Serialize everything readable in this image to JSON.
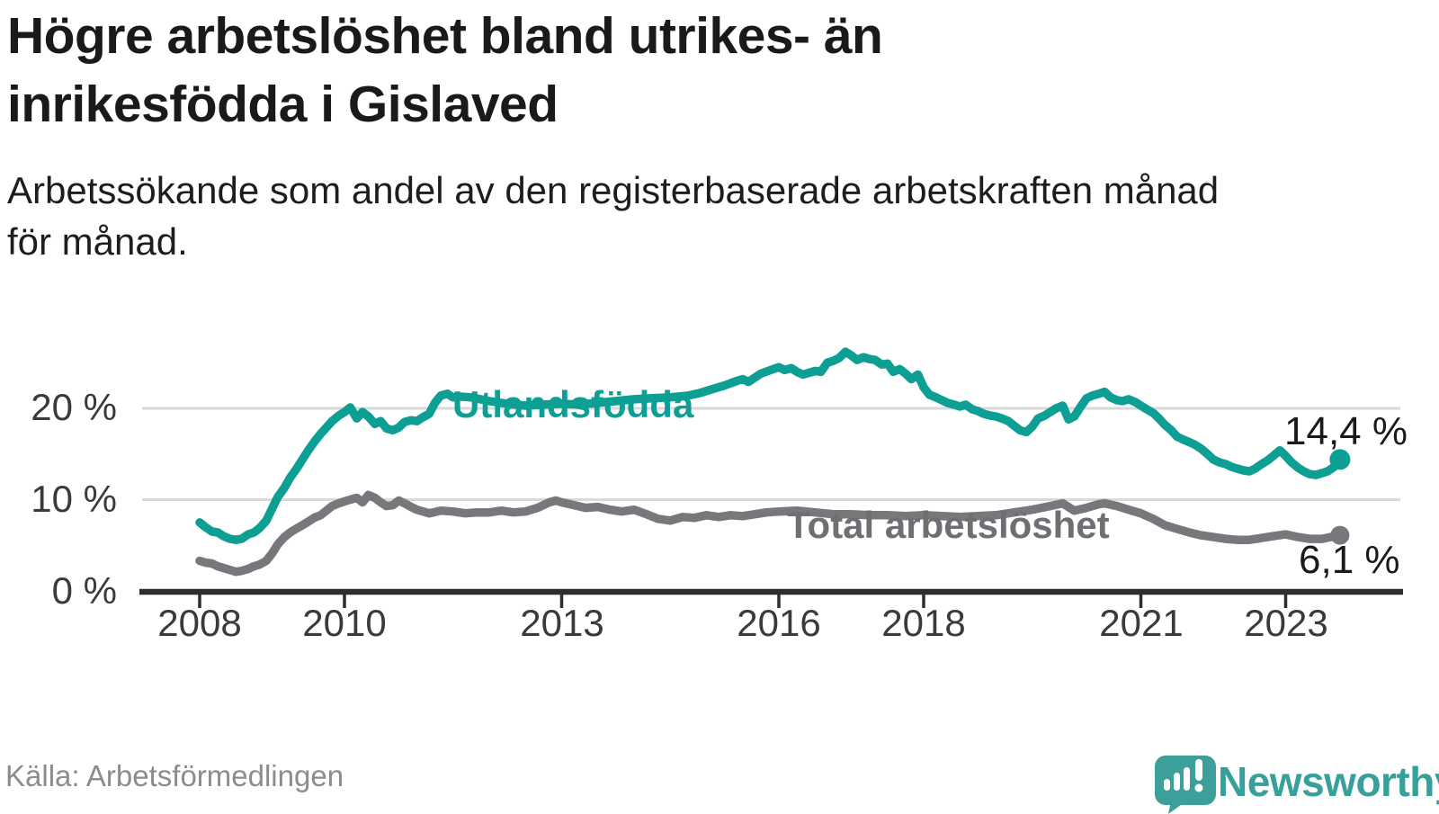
{
  "header": {
    "title_line1": "Högre arbetslöshet bland utrikes- än",
    "title_line2": "inrikesfödda i Gislaved",
    "subtitle_line1": "Arbetssökande som andel av den registerbaserade arbetskraften månad",
    "subtitle_line2": "för månad."
  },
  "footer": {
    "source": "Källa: Arbetsförmedlingen",
    "brand": "Newsworthy"
  },
  "colors": {
    "teal": "#0d9f94",
    "gray": "#77777c",
    "grid": "#d9d9d9",
    "axis": "#2d2d2d"
  },
  "chart_data": {
    "type": "line",
    "unit": "%",
    "title": "Högre arbetslöshet bland utrikes- än inrikesfödda i Gislaved",
    "subtitle": "Arbetssökande som andel av den registerbaserade arbetskraften månad för månad.",
    "grid": "horizontal-only",
    "y_axis": {
      "range": [
        0,
        28
      ],
      "gridlines": [
        10,
        20
      ],
      "ticks": [
        {
          "value": 20,
          "label": "20 %"
        },
        {
          "value": 10,
          "label": "10 %"
        },
        {
          "value": 0,
          "label": "0 %"
        }
      ]
    },
    "x_axis": {
      "range": [
        2008.0,
        2024.6
      ],
      "ticks": [
        {
          "value": 2008,
          "label": "2008"
        },
        {
          "value": 2010,
          "label": "2010"
        },
        {
          "value": 2013,
          "label": "2013"
        },
        {
          "value": 2016,
          "label": "2016"
        },
        {
          "value": 2018,
          "label": "2018"
        },
        {
          "value": 2021,
          "label": "2021"
        },
        {
          "value": 2023,
          "label": "2023"
        }
      ]
    },
    "series": [
      {
        "name": "Utlandsfödda",
        "color": "#0d9f94",
        "end_value": 14.4,
        "end_label": "14,4 %",
        "points": [
          [
            2008.0,
            7.5
          ],
          [
            2008.08,
            7.0
          ],
          [
            2008.17,
            6.5
          ],
          [
            2008.25,
            6.4
          ],
          [
            2008.33,
            6.0
          ],
          [
            2008.42,
            5.7
          ],
          [
            2008.5,
            5.6
          ],
          [
            2008.58,
            5.7
          ],
          [
            2008.67,
            6.2
          ],
          [
            2008.75,
            6.4
          ],
          [
            2008.83,
            6.9
          ],
          [
            2008.92,
            7.7
          ],
          [
            2009.0,
            9.0
          ],
          [
            2009.08,
            10.3
          ],
          [
            2009.17,
            11.3
          ],
          [
            2009.25,
            12.4
          ],
          [
            2009.33,
            13.3
          ],
          [
            2009.42,
            14.4
          ],
          [
            2009.5,
            15.4
          ],
          [
            2009.58,
            16.3
          ],
          [
            2009.67,
            17.2
          ],
          [
            2009.75,
            17.9
          ],
          [
            2009.83,
            18.6
          ],
          [
            2009.92,
            19.2
          ],
          [
            2010.0,
            19.6
          ],
          [
            2010.08,
            20.1
          ],
          [
            2010.17,
            18.9
          ],
          [
            2010.25,
            19.6
          ],
          [
            2010.33,
            19.1
          ],
          [
            2010.42,
            18.3
          ],
          [
            2010.5,
            18.6
          ],
          [
            2010.58,
            17.8
          ],
          [
            2010.67,
            17.6
          ],
          [
            2010.75,
            17.9
          ],
          [
            2010.83,
            18.5
          ],
          [
            2010.92,
            18.7
          ],
          [
            2011.0,
            18.6
          ],
          [
            2011.08,
            19.0
          ],
          [
            2011.17,
            19.4
          ],
          [
            2011.25,
            20.6
          ],
          [
            2011.33,
            21.4
          ],
          [
            2011.42,
            21.6
          ],
          [
            2011.5,
            21.2
          ],
          [
            2011.58,
            21.3
          ],
          [
            2011.75,
            21.2
          ],
          [
            2012.0,
            20.8
          ],
          [
            2012.25,
            20.5
          ],
          [
            2012.5,
            20.3
          ],
          [
            2012.75,
            20.4
          ],
          [
            2013.0,
            20.5
          ],
          [
            2013.25,
            20.4
          ],
          [
            2013.5,
            20.6
          ],
          [
            2013.75,
            20.8
          ],
          [
            2014.0,
            21.0
          ],
          [
            2014.25,
            21.1
          ],
          [
            2014.5,
            21.2
          ],
          [
            2014.75,
            21.4
          ],
          [
            2014.92,
            21.7
          ],
          [
            2015.08,
            22.1
          ],
          [
            2015.25,
            22.5
          ],
          [
            2015.42,
            23.0
          ],
          [
            2015.5,
            23.2
          ],
          [
            2015.58,
            22.9
          ],
          [
            2015.75,
            23.8
          ],
          [
            2015.92,
            24.3
          ],
          [
            2016.0,
            24.5
          ],
          [
            2016.08,
            24.2
          ],
          [
            2016.17,
            24.4
          ],
          [
            2016.25,
            24.0
          ],
          [
            2016.33,
            23.7
          ],
          [
            2016.42,
            23.9
          ],
          [
            2016.5,
            24.1
          ],
          [
            2016.58,
            24.0
          ],
          [
            2016.67,
            25.0
          ],
          [
            2016.75,
            25.2
          ],
          [
            2016.83,
            25.5
          ],
          [
            2016.92,
            26.2
          ],
          [
            2017.0,
            25.8
          ],
          [
            2017.08,
            25.3
          ],
          [
            2017.17,
            25.6
          ],
          [
            2017.25,
            25.4
          ],
          [
            2017.33,
            25.3
          ],
          [
            2017.42,
            24.8
          ],
          [
            2017.5,
            24.9
          ],
          [
            2017.58,
            24.0
          ],
          [
            2017.67,
            24.3
          ],
          [
            2017.75,
            23.8
          ],
          [
            2017.83,
            23.2
          ],
          [
            2017.92,
            23.7
          ],
          [
            2018.0,
            22.3
          ],
          [
            2018.08,
            21.5
          ],
          [
            2018.17,
            21.2
          ],
          [
            2018.25,
            20.9
          ],
          [
            2018.33,
            20.6
          ],
          [
            2018.42,
            20.4
          ],
          [
            2018.5,
            20.2
          ],
          [
            2018.58,
            20.4
          ],
          [
            2018.67,
            19.9
          ],
          [
            2018.75,
            19.7
          ],
          [
            2018.83,
            19.4
          ],
          [
            2018.92,
            19.2
          ],
          [
            2019.0,
            19.1
          ],
          [
            2019.08,
            18.9
          ],
          [
            2019.17,
            18.6
          ],
          [
            2019.25,
            18.1
          ],
          [
            2019.33,
            17.6
          ],
          [
            2019.42,
            17.4
          ],
          [
            2019.5,
            18.0
          ],
          [
            2019.58,
            18.9
          ],
          [
            2019.67,
            19.2
          ],
          [
            2019.75,
            19.6
          ],
          [
            2019.83,
            20.0
          ],
          [
            2019.92,
            20.3
          ],
          [
            2020.0,
            18.8
          ],
          [
            2020.08,
            19.1
          ],
          [
            2020.17,
            20.2
          ],
          [
            2020.25,
            21.1
          ],
          [
            2020.33,
            21.4
          ],
          [
            2020.42,
            21.6
          ],
          [
            2020.5,
            21.8
          ],
          [
            2020.58,
            21.2
          ],
          [
            2020.67,
            20.9
          ],
          [
            2020.75,
            20.8
          ],
          [
            2020.83,
            21.0
          ],
          [
            2020.92,
            20.7
          ],
          [
            2021.0,
            20.3
          ],
          [
            2021.08,
            19.9
          ],
          [
            2021.17,
            19.5
          ],
          [
            2021.25,
            18.9
          ],
          [
            2021.33,
            18.2
          ],
          [
            2021.42,
            17.6
          ],
          [
            2021.5,
            16.9
          ],
          [
            2021.58,
            16.6
          ],
          [
            2021.67,
            16.3
          ],
          [
            2021.75,
            16.0
          ],
          [
            2021.83,
            15.6
          ],
          [
            2021.92,
            15.0
          ],
          [
            2022.0,
            14.4
          ],
          [
            2022.08,
            14.1
          ],
          [
            2022.17,
            13.9
          ],
          [
            2022.25,
            13.6
          ],
          [
            2022.33,
            13.4
          ],
          [
            2022.42,
            13.2
          ],
          [
            2022.5,
            13.1
          ],
          [
            2022.58,
            13.4
          ],
          [
            2022.67,
            13.9
          ],
          [
            2022.75,
            14.3
          ],
          [
            2022.83,
            14.8
          ],
          [
            2022.92,
            15.4
          ],
          [
            2023.0,
            14.8
          ],
          [
            2023.08,
            14.1
          ],
          [
            2023.17,
            13.5
          ],
          [
            2023.25,
            13.1
          ],
          [
            2023.33,
            12.8
          ],
          [
            2023.42,
            12.7
          ],
          [
            2023.5,
            12.9
          ],
          [
            2023.58,
            13.1
          ],
          [
            2023.67,
            13.6
          ],
          [
            2023.75,
            14.4
          ]
        ]
      },
      {
        "name": "Total arbetslöshet",
        "color": "#77777c",
        "end_value": 6.1,
        "end_label": "6,1 %",
        "points": [
          [
            2008.0,
            3.3
          ],
          [
            2008.08,
            3.1
          ],
          [
            2008.17,
            3.0
          ],
          [
            2008.25,
            2.7
          ],
          [
            2008.33,
            2.5
          ],
          [
            2008.42,
            2.3
          ],
          [
            2008.5,
            2.1
          ],
          [
            2008.58,
            2.2
          ],
          [
            2008.67,
            2.4
          ],
          [
            2008.75,
            2.7
          ],
          [
            2008.83,
            2.9
          ],
          [
            2008.92,
            3.3
          ],
          [
            2009.0,
            4.1
          ],
          [
            2009.08,
            5.1
          ],
          [
            2009.17,
            5.9
          ],
          [
            2009.25,
            6.4
          ],
          [
            2009.33,
            6.8
          ],
          [
            2009.42,
            7.2
          ],
          [
            2009.5,
            7.6
          ],
          [
            2009.58,
            8.0
          ],
          [
            2009.67,
            8.3
          ],
          [
            2009.75,
            8.8
          ],
          [
            2009.83,
            9.3
          ],
          [
            2009.92,
            9.6
          ],
          [
            2010.0,
            9.8
          ],
          [
            2010.08,
            10.0
          ],
          [
            2010.17,
            10.2
          ],
          [
            2010.25,
            9.7
          ],
          [
            2010.33,
            10.5
          ],
          [
            2010.42,
            10.2
          ],
          [
            2010.5,
            9.7
          ],
          [
            2010.58,
            9.3
          ],
          [
            2010.67,
            9.4
          ],
          [
            2010.75,
            9.9
          ],
          [
            2010.83,
            9.6
          ],
          [
            2010.92,
            9.2
          ],
          [
            2011.0,
            8.9
          ],
          [
            2011.17,
            8.5
          ],
          [
            2011.33,
            8.8
          ],
          [
            2011.5,
            8.7
          ],
          [
            2011.67,
            8.5
          ],
          [
            2011.83,
            8.6
          ],
          [
            2012.0,
            8.6
          ],
          [
            2012.17,
            8.8
          ],
          [
            2012.33,
            8.6
          ],
          [
            2012.5,
            8.7
          ],
          [
            2012.67,
            9.1
          ],
          [
            2012.83,
            9.7
          ],
          [
            2012.92,
            9.9
          ],
          [
            2013.0,
            9.7
          ],
          [
            2013.17,
            9.4
          ],
          [
            2013.33,
            9.1
          ],
          [
            2013.5,
            9.2
          ],
          [
            2013.67,
            8.9
          ],
          [
            2013.83,
            8.7
          ],
          [
            2014.0,
            8.9
          ],
          [
            2014.17,
            8.4
          ],
          [
            2014.33,
            7.9
          ],
          [
            2014.5,
            7.7
          ],
          [
            2014.67,
            8.1
          ],
          [
            2014.83,
            8.0
          ],
          [
            2015.0,
            8.3
          ],
          [
            2015.17,
            8.1
          ],
          [
            2015.33,
            8.3
          ],
          [
            2015.5,
            8.2
          ],
          [
            2015.67,
            8.4
          ],
          [
            2015.83,
            8.6
          ],
          [
            2016.0,
            8.7
          ],
          [
            2016.25,
            8.8
          ],
          [
            2016.5,
            8.6
          ],
          [
            2016.75,
            8.4
          ],
          [
            2017.0,
            8.4
          ],
          [
            2017.25,
            8.3
          ],
          [
            2017.5,
            8.3
          ],
          [
            2017.75,
            8.2
          ],
          [
            2018.0,
            8.3
          ],
          [
            2018.25,
            8.2
          ],
          [
            2018.5,
            8.1
          ],
          [
            2018.75,
            8.2
          ],
          [
            2019.0,
            8.3
          ],
          [
            2019.25,
            8.6
          ],
          [
            2019.5,
            8.9
          ],
          [
            2019.75,
            9.3
          ],
          [
            2019.92,
            9.6
          ],
          [
            2020.08,
            8.8
          ],
          [
            2020.25,
            9.1
          ],
          [
            2020.42,
            9.5
          ],
          [
            2020.5,
            9.6
          ],
          [
            2020.67,
            9.3
          ],
          [
            2020.83,
            8.9
          ],
          [
            2021.0,
            8.5
          ],
          [
            2021.17,
            7.9
          ],
          [
            2021.33,
            7.2
          ],
          [
            2021.5,
            6.8
          ],
          [
            2021.67,
            6.4
          ],
          [
            2021.83,
            6.1
          ],
          [
            2022.0,
            5.9
          ],
          [
            2022.17,
            5.7
          ],
          [
            2022.33,
            5.6
          ],
          [
            2022.5,
            5.6
          ],
          [
            2022.67,
            5.8
          ],
          [
            2022.83,
            6.0
          ],
          [
            2023.0,
            6.2
          ],
          [
            2023.17,
            5.9
          ],
          [
            2023.33,
            5.7
          ],
          [
            2023.5,
            5.7
          ],
          [
            2023.62,
            5.9
          ],
          [
            2023.75,
            6.1
          ]
        ]
      }
    ]
  }
}
